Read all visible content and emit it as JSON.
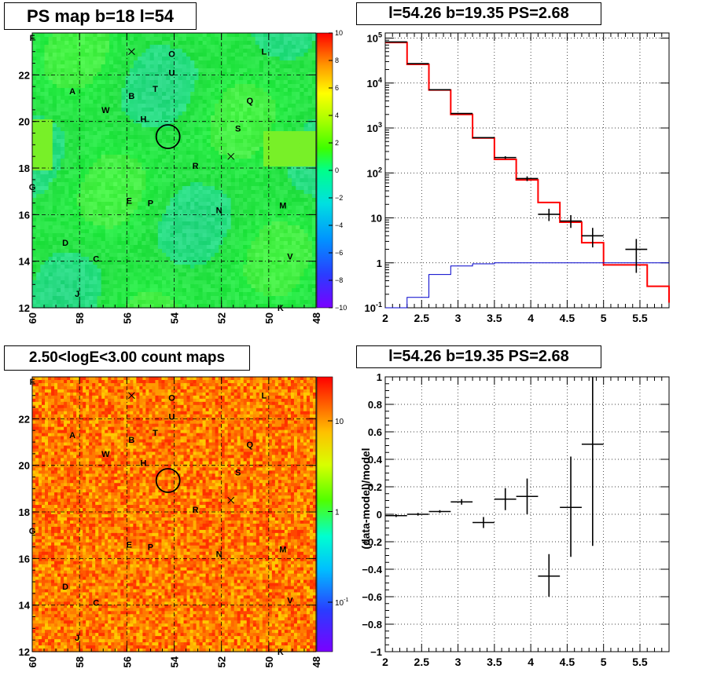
{
  "panels": {
    "ps_map_title": "PS map b=18 l=54",
    "spectrum_title": "l=54.26 b=19.35 PS=2.68",
    "count_map_title": "2.50<logE<3.00 count maps",
    "residual_title": "l=54.26 b=19.35 PS=2.68"
  },
  "chart_data": [
    {
      "id": "ps_map",
      "type": "heatmap",
      "title": "PS map b=18 l=54",
      "xlim": [
        60,
        48
      ],
      "ylim": [
        12,
        23.8
      ],
      "x_ticks": [
        "60",
        "58",
        "56",
        "54",
        "52",
        "50",
        "48"
      ],
      "y_ticks": [
        "12",
        "14",
        "16",
        "18",
        "20",
        "22"
      ],
      "colorbar": {
        "range": [
          -10,
          10
        ],
        "ticks": [
          "10",
          "8",
          "6",
          "4",
          "2",
          "0",
          "−2",
          "−4",
          "−6",
          "−8",
          "−10"
        ]
      },
      "dominant_value": 1.5,
      "source_marker": {
        "l": 54.26,
        "b": 19.35
      },
      "cross_markers": [
        {
          "l": 55.8,
          "b": 23.0
        },
        {
          "l": 51.6,
          "b": 18.5
        }
      ],
      "labels": [
        {
          "text": "F",
          "l": 60.0,
          "b": 23.6
        },
        {
          "text": "O",
          "l": 54.1,
          "b": 22.9
        },
        {
          "text": "L",
          "l": 50.2,
          "b": 23.0
        },
        {
          "text": "U",
          "l": 54.1,
          "b": 22.1
        },
        {
          "text": "A",
          "l": 58.3,
          "b": 21.3
        },
        {
          "text": "T",
          "l": 54.8,
          "b": 21.4
        },
        {
          "text": "B",
          "l": 55.8,
          "b": 21.1
        },
        {
          "text": "Q",
          "l": 50.8,
          "b": 20.9
        },
        {
          "text": "W",
          "l": 56.9,
          "b": 20.5
        },
        {
          "text": "H",
          "l": 55.3,
          "b": 20.1
        },
        {
          "text": "S",
          "l": 51.3,
          "b": 19.7
        },
        {
          "text": "R",
          "l": 53.1,
          "b": 18.1
        },
        {
          "text": "G",
          "l": 60.0,
          "b": 17.2
        },
        {
          "text": "E",
          "l": 55.9,
          "b": 16.6
        },
        {
          "text": "P",
          "l": 55.0,
          "b": 16.5
        },
        {
          "text": "M",
          "l": 49.4,
          "b": 16.4
        },
        {
          "text": "N",
          "l": 52.1,
          "b": 16.2
        },
        {
          "text": "D",
          "l": 58.6,
          "b": 14.8
        },
        {
          "text": "C",
          "l": 57.3,
          "b": 14.1
        },
        {
          "text": "V",
          "l": 49.1,
          "b": 14.2
        },
        {
          "text": "J",
          "l": 58.1,
          "b": 12.6
        },
        {
          "text": "K",
          "l": 49.5,
          "b": 12.0
        }
      ]
    },
    {
      "id": "spectrum",
      "type": "line",
      "title": "l=54.26 b=19.35 PS=2.68",
      "scale_y": "log",
      "xlim": [
        2,
        5.9
      ],
      "ylim": [
        0.1,
        130000
      ],
      "x_ticks": [
        "2",
        "2.5",
        "3",
        "3.5",
        "4",
        "4.5",
        "5",
        "5.5"
      ],
      "y_ticks": [
        "10^-1",
        "1",
        "10",
        "10^2",
        "10^3",
        "10^4",
        "10^5"
      ],
      "bin_edges": [
        2.0,
        2.3,
        2.6,
        2.9,
        3.2,
        3.5,
        3.8,
        4.1,
        4.4,
        4.7,
        5.0,
        5.6,
        5.9
      ],
      "series": [
        {
          "color": "#ff0000",
          "values": [
            80000,
            26000,
            7000,
            2000,
            600,
            200,
            70,
            22,
            8,
            2.8,
            0.9,
            0.3,
            0.13
          ]
        },
        {
          "color": "#0000cc",
          "values": [
            0.1,
            0.17,
            0.55,
            0.85,
            0.95,
            1.0,
            1.0,
            1.0,
            1.0,
            1.0,
            1.0,
            1.0,
            1.0
          ]
        }
      ],
      "data_points": [
        {
          "x": 2.15,
          "y": 82000,
          "xerr": 0.15,
          "ylo": 81000,
          "yhi": 83000
        },
        {
          "x": 2.45,
          "y": 27000,
          "xerr": 0.15,
          "ylo": 26500,
          "yhi": 27500
        },
        {
          "x": 2.75,
          "y": 7100,
          "xerr": 0.15,
          "ylo": 7000,
          "yhi": 7200
        },
        {
          "x": 3.05,
          "y": 2100,
          "xerr": 0.15,
          "ylo": 2050,
          "yhi": 2150
        },
        {
          "x": 3.35,
          "y": 610,
          "xerr": 0.15,
          "ylo": 590,
          "yhi": 630
        },
        {
          "x": 3.65,
          "y": 220,
          "xerr": 0.15,
          "ylo": 205,
          "yhi": 235
        },
        {
          "x": 3.95,
          "y": 75,
          "xerr": 0.15,
          "ylo": 66,
          "yhi": 84
        },
        {
          "x": 4.25,
          "y": 12,
          "xerr": 0.15,
          "ylo": 8.5,
          "yhi": 16
        },
        {
          "x": 4.55,
          "y": 8.5,
          "xerr": 0.15,
          "ylo": 6,
          "yhi": 11.5
        },
        {
          "x": 4.85,
          "y": 4,
          "xerr": 0.15,
          "ylo": 2.2,
          "yhi": 6
        },
        {
          "x": 5.45,
          "y": 2,
          "xerr": 0.15,
          "ylo": 0.6,
          "yhi": 3.4
        }
      ]
    },
    {
      "id": "count_map",
      "type": "heatmap",
      "title": "2.50<logE<3.00 count maps",
      "xlim": [
        60,
        48
      ],
      "ylim": [
        12,
        23.8
      ],
      "x_ticks": [
        "60",
        "58",
        "56",
        "54",
        "52",
        "50",
        "48"
      ],
      "y_ticks": [
        "12",
        "14",
        "16",
        "18",
        "20",
        "22"
      ],
      "colorbar": {
        "scale": "log",
        "ticks": [
          "10",
          "1",
          "10^-1"
        ]
      },
      "typical_count": 20,
      "source_marker": {
        "l": 54.26,
        "b": 19.35
      }
    },
    {
      "id": "residual",
      "type": "scatter",
      "title": "l=54.26 b=19.35 PS=2.68",
      "xlim": [
        2,
        5.9
      ],
      "ylim": [
        -1,
        1
      ],
      "ylabel": "(data-model)/model",
      "x_ticks": [
        "2",
        "2.5",
        "3",
        "3.5",
        "4",
        "4.5",
        "5",
        "5.5"
      ],
      "y_ticks": [
        "−1",
        "−0.8",
        "−0.6",
        "−0.4",
        "−0.2",
        "0",
        "0.2",
        "0.4",
        "0.6",
        "0.8",
        "1"
      ],
      "points": [
        {
          "x": 2.15,
          "y": -0.01,
          "xerr": 0.15,
          "ylo": -0.02,
          "yhi": 0.0
        },
        {
          "x": 2.45,
          "y": 0.0,
          "xerr": 0.15,
          "ylo": -0.01,
          "yhi": 0.01
        },
        {
          "x": 2.75,
          "y": 0.02,
          "xerr": 0.15,
          "ylo": 0.01,
          "yhi": 0.03
        },
        {
          "x": 3.05,
          "y": 0.09,
          "xerr": 0.15,
          "ylo": 0.07,
          "yhi": 0.11
        },
        {
          "x": 3.35,
          "y": -0.06,
          "xerr": 0.15,
          "ylo": -0.1,
          "yhi": -0.02
        },
        {
          "x": 3.65,
          "y": 0.11,
          "xerr": 0.15,
          "ylo": 0.03,
          "yhi": 0.19
        },
        {
          "x": 3.95,
          "y": 0.13,
          "xerr": 0.15,
          "ylo": 0.0,
          "yhi": 0.26
        },
        {
          "x": 4.25,
          "y": -0.45,
          "xerr": 0.15,
          "ylo": -0.6,
          "yhi": -0.29
        },
        {
          "x": 4.55,
          "y": 0.05,
          "xerr": 0.15,
          "ylo": -0.31,
          "yhi": 0.42
        },
        {
          "x": 4.85,
          "y": 0.51,
          "xerr": 0.15,
          "ylo": -0.23,
          "yhi": 1.0
        }
      ]
    }
  ]
}
